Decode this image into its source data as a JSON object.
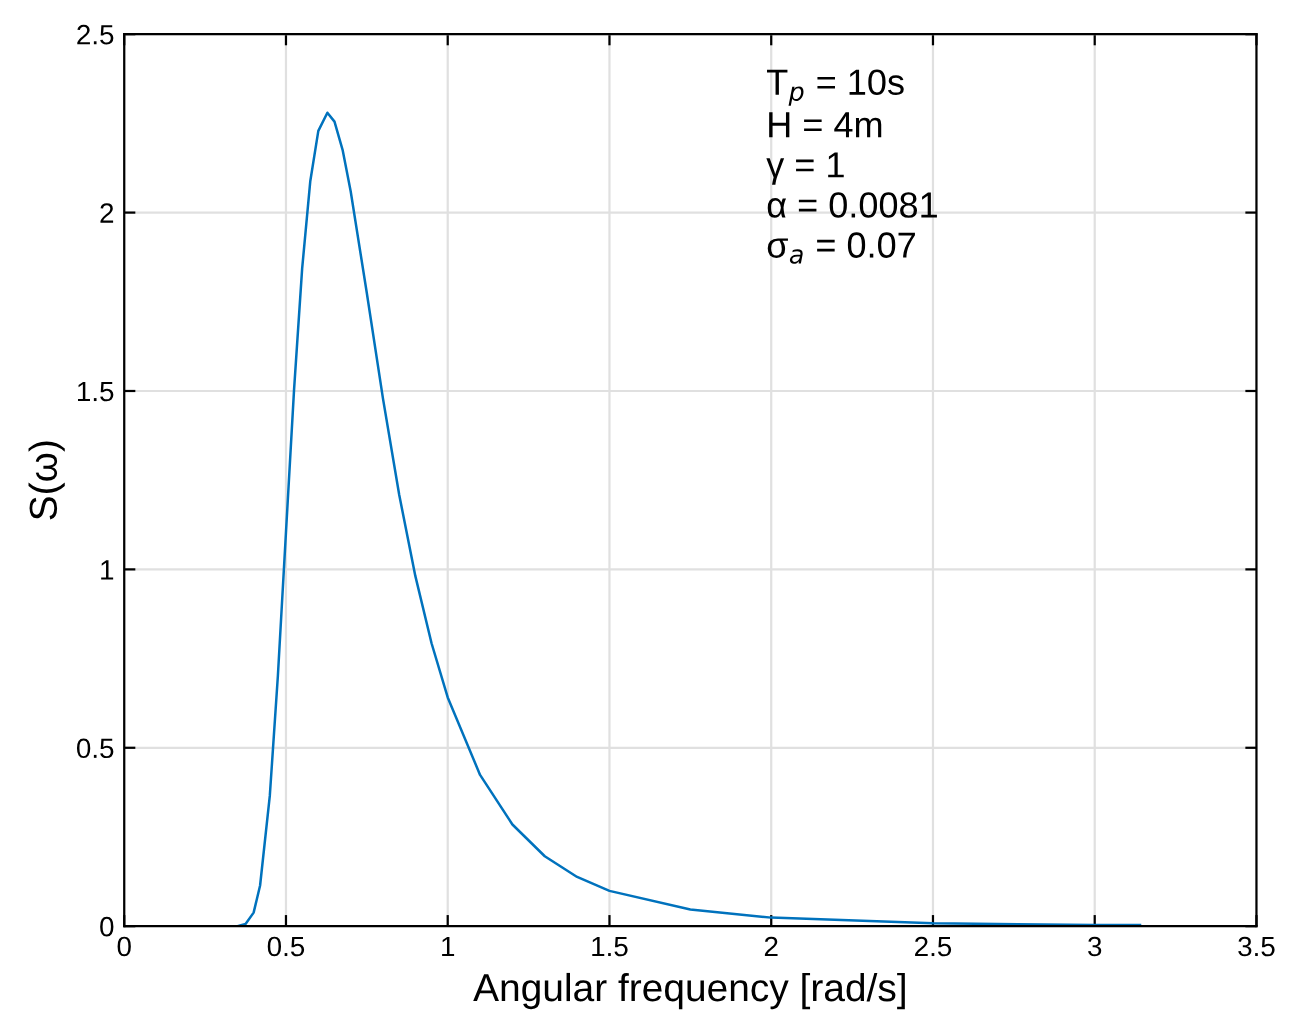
{
  "chart_data": {
    "type": "line",
    "xlabel": "Angular frequency [rad/s]",
    "ylabel": "S(ω)",
    "x": [
      0.2,
      0.3,
      0.35,
      0.375,
      0.4,
      0.42,
      0.45,
      0.475,
      0.5,
      0.525,
      0.55,
      0.575,
      0.6,
      0.628,
      0.65,
      0.675,
      0.7,
      0.75,
      0.8,
      0.85,
      0.9,
      0.95,
      1.0,
      1.1,
      1.2,
      1.3,
      1.4,
      1.5,
      1.75,
      2.0,
      2.5,
      3.0,
      3.14
    ],
    "series": [
      {
        "color": "#0072bd",
        "values": [
          0,
          0,
          0,
          0.006,
          0.038,
          0.114,
          0.365,
          0.702,
          1.104,
          1.504,
          1.843,
          2.087,
          2.229,
          2.28,
          2.255,
          2.176,
          2.06,
          1.774,
          1.478,
          1.209,
          0.981,
          0.793,
          0.641,
          0.424,
          0.285,
          0.196,
          0.138,
          0.099,
          0.047,
          0.024,
          0.008,
          0.003,
          0.003
        ]
      }
    ],
    "xlim": [
      0,
      3.5
    ],
    "ylim": [
      0,
      2.5
    ],
    "xticks": [
      0,
      0.5,
      1,
      1.5,
      2,
      2.5,
      3,
      3.5
    ],
    "yticks": [
      0,
      0.5,
      1,
      1.5,
      2,
      2.5
    ],
    "grid": true,
    "annotations": [
      "T$_{p}$ = 10s",
      "H = 4m",
      "γ = 1",
      "α = 0.0081",
      "σ$_{a}$ = 0.07"
    ]
  }
}
